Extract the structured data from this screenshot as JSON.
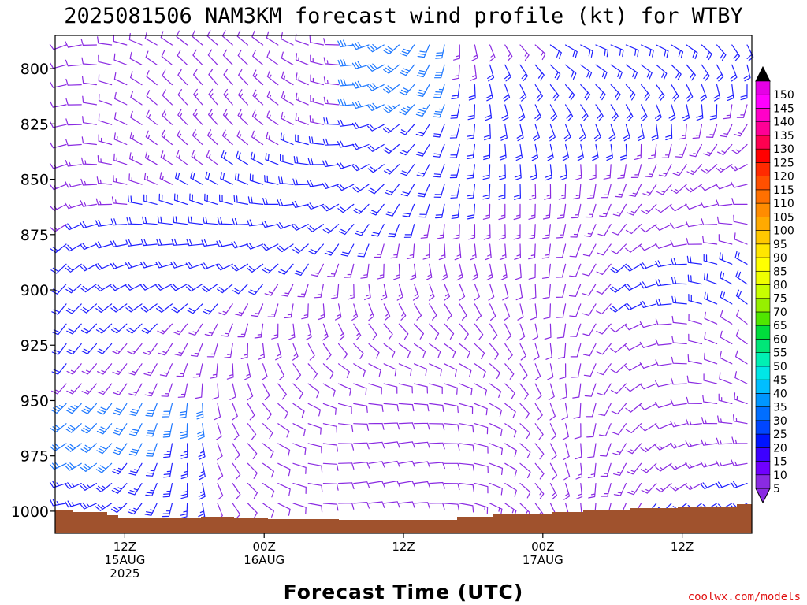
{
  "chart_data": {
    "type": "wind-barb-profile",
    "title": "2025081506 NAM3KM forecast wind profile (kt) for WTBY",
    "xlabel": "Forecast Time (UTC)",
    "ylabel": "",
    "credit": "coolwx.com/models",
    "y_axis": {
      "units": "hPa",
      "range": [
        1010,
        785
      ],
      "ticks": [
        {
          "value": 800,
          "label": "800"
        },
        {
          "value": 825,
          "label": "825"
        },
        {
          "value": 850,
          "label": "850"
        },
        {
          "value": 875,
          "label": "875"
        },
        {
          "value": 900,
          "label": "900"
        },
        {
          "value": 925,
          "label": "925"
        },
        {
          "value": 950,
          "label": "950"
        },
        {
          "value": 975,
          "label": "975"
        },
        {
          "value": 1000,
          "label": "1000"
        }
      ]
    },
    "x_axis": {
      "units": "forecast hours",
      "range": [
        0,
        60
      ],
      "ticks": [
        {
          "value": 6,
          "lines": [
            "12Z",
            "15AUG",
            "2025"
          ]
        },
        {
          "value": 18,
          "lines": [
            "00Z",
            "16AUG"
          ]
        },
        {
          "value": 30,
          "lines": [
            "12Z"
          ]
        },
        {
          "value": 42,
          "lines": [
            "00Z",
            "17AUG"
          ]
        },
        {
          "value": 54,
          "lines": [
            "12Z"
          ]
        }
      ]
    },
    "colorbar": {
      "labels": [
        "5",
        "10",
        "15",
        "20",
        "25",
        "30",
        "35",
        "40",
        "45",
        "50",
        "55",
        "60",
        "65",
        "70",
        "75",
        "80",
        "85",
        "90",
        "95",
        "100",
        "105",
        "110",
        "115",
        "120",
        "125",
        "130",
        "135",
        "140",
        "145",
        "150"
      ],
      "colors": [
        "#8a2be2",
        "#7000ff",
        "#3c00ff",
        "#0014ff",
        "#0046ff",
        "#006eff",
        "#0096ff",
        "#00beff",
        "#00e6e6",
        "#00f0b4",
        "#00e678",
        "#00dc3c",
        "#50e600",
        "#96f000",
        "#c8ff00",
        "#f0ff00",
        "#ffff00",
        "#ffe600",
        "#ffc800",
        "#ffaa00",
        "#ff8c00",
        "#ff7000",
        "#ff5000",
        "#ff2a00",
        "#ff0000",
        "#ff0050",
        "#ff0096",
        "#ff00c8",
        "#ff00ff",
        "#e600e6"
      ]
    },
    "colors": {
      "terrain": "#a0522d",
      "barb_light": "#8a2be2",
      "barb_medium": "#2020ff",
      "barb_strong": "#1e78ff"
    },
    "grid": false,
    "legend_position": "right"
  }
}
